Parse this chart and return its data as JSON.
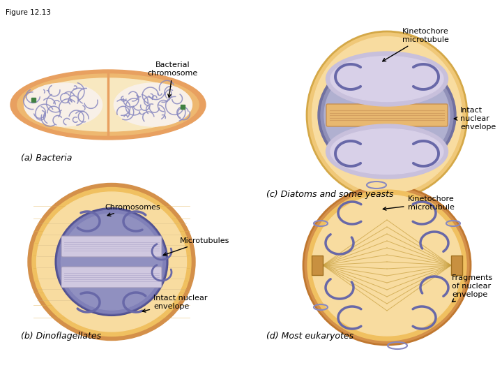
{
  "figure_title": "Figure 12.13",
  "background_color": "#ffffff",
  "panel_labels": [
    "(a) Bacteria",
    "(b) Dinoflagellates",
    "(c) Diatoms and some yeasts",
    "(d) Most eukaryotes"
  ],
  "colors": {
    "outer_cell_orange": "#E8A060",
    "outer_cell_light": "#F0C878",
    "outer_cell_pale": "#F8DCA0",
    "inner_pale": "#F0E8D0",
    "chromosome_blue": "#8888C0",
    "chromosome_dark": "#6868A8",
    "nuclear_env_dark": "#8080B0",
    "nuclear_env_light": "#A0A0C8",
    "nuclear_env_bg": "#C0C0D8",
    "spindle_orange": "#D4904A",
    "spindle_light": "#E8C070",
    "white_ish": "#E8E0F0",
    "green_dot": "#408040",
    "cell_bg_tan": "#F8E8C0"
  }
}
